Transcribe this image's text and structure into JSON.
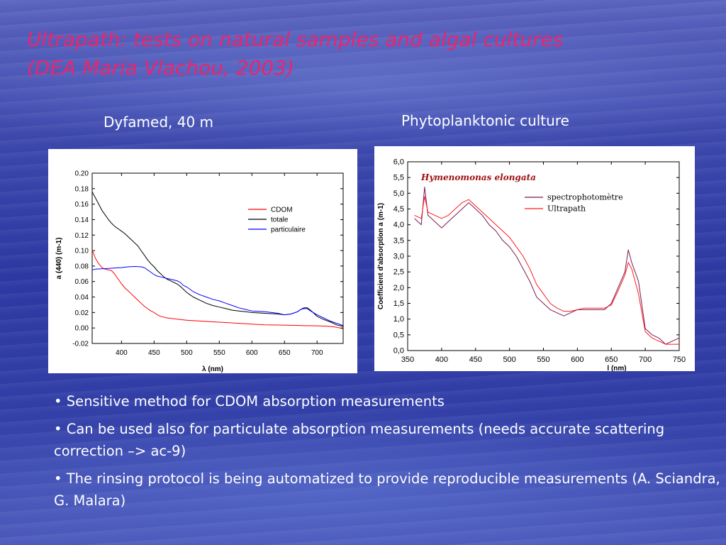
{
  "title": {
    "line1": "Ultrapath: tests on natural samples and algal cultures",
    "line2": "(DEA Maria Vlachou, 2003)"
  },
  "captions": {
    "left": "Dyfamed, 40 m",
    "right": "Phytoplanktonic culture"
  },
  "bullets": [
    "• Sensitive method for CDOM absorption measurements",
    "• Can be used also for particulate absorption measurements (needs accurate scattering correction –> ac-9)",
    "• The rinsing protocol is being automatized to provide reproducible measurements (A. Sciandra, G. Malara)"
  ],
  "chart_data": [
    {
      "type": "line",
      "xlabel": "λ (nm)",
      "ylabel": "a (440) (m-1)",
      "xlim": [
        355,
        740
      ],
      "ylim": [
        -0.02,
        0.2
      ],
      "xticks": [
        "400",
        "450",
        "500",
        "550",
        "600",
        "650",
        "700"
      ],
      "yticks": [
        "-0.02",
        "0.00",
        "0.02",
        "0.04",
        "0.06",
        "0.08",
        "0.10",
        "0.12",
        "0.14",
        "0.16",
        "0.18",
        "0.20"
      ],
      "legend_position": "top-right",
      "grid": false,
      "series": [
        {
          "name": "CDOM",
          "color": "#ff0000",
          "points": [
            [
              355,
              0.101
            ],
            [
              360,
              0.09
            ],
            [
              365,
              0.083
            ],
            [
              370,
              0.078
            ],
            [
              375,
              0.076
            ],
            [
              380,
              0.075
            ],
            [
              385,
              0.074
            ],
            [
              390,
              0.069
            ],
            [
              395,
              0.063
            ],
            [
              400,
              0.057
            ],
            [
              405,
              0.052
            ],
            [
              410,
              0.048
            ],
            [
              415,
              0.044
            ],
            [
              420,
              0.04
            ],
            [
              425,
              0.036
            ],
            [
              430,
              0.032
            ],
            [
              435,
              0.028
            ],
            [
              440,
              0.025
            ],
            [
              445,
              0.022
            ],
            [
              450,
              0.02
            ],
            [
              455,
              0.017
            ],
            [
              460,
              0.015
            ],
            [
              470,
              0.013
            ],
            [
              480,
              0.012
            ],
            [
              490,
              0.011
            ],
            [
              500,
              0.01
            ],
            [
              520,
              0.009
            ],
            [
              540,
              0.008
            ],
            [
              560,
              0.007
            ],
            [
              580,
              0.006
            ],
            [
              600,
              0.005
            ],
            [
              620,
              0.004
            ],
            [
              640,
              0.0038
            ],
            [
              660,
              0.0035
            ],
            [
              680,
              0.003
            ],
            [
              700,
              0.0028
            ],
            [
              710,
              0.0025
            ],
            [
              720,
              0.002
            ],
            [
              730,
              0.001
            ],
            [
              740,
              -0.001
            ]
          ]
        },
        {
          "name": "totale",
          "color": "#000000",
          "points": [
            [
              355,
              0.176
            ],
            [
              360,
              0.168
            ],
            [
              365,
              0.16
            ],
            [
              370,
              0.152
            ],
            [
              375,
              0.146
            ],
            [
              380,
              0.14
            ],
            [
              385,
              0.135
            ],
            [
              390,
              0.131
            ],
            [
              395,
              0.128
            ],
            [
              400,
              0.125
            ],
            [
              405,
              0.122
            ],
            [
              410,
              0.118
            ],
            [
              415,
              0.114
            ],
            [
              420,
              0.11
            ],
            [
              425,
              0.106
            ],
            [
              430,
              0.1
            ],
            [
              435,
              0.094
            ],
            [
              440,
              0.088
            ],
            [
              445,
              0.083
            ],
            [
              450,
              0.079
            ],
            [
              455,
              0.074
            ],
            [
              460,
              0.07
            ],
            [
              465,
              0.066
            ],
            [
              470,
              0.063
            ],
            [
              475,
              0.061
            ],
            [
              480,
              0.059
            ],
            [
              485,
              0.057
            ],
            [
              490,
              0.054
            ],
            [
              495,
              0.05
            ],
            [
              500,
              0.046
            ],
            [
              505,
              0.043
            ],
            [
              510,
              0.04
            ],
            [
              520,
              0.036
            ],
            [
              530,
              0.032
            ],
            [
              540,
              0.029
            ],
            [
              550,
              0.027
            ],
            [
              560,
              0.025
            ],
            [
              570,
              0.023
            ],
            [
              580,
              0.022
            ],
            [
              590,
              0.021
            ],
            [
              600,
              0.02
            ],
            [
              620,
              0.019
            ],
            [
              640,
              0.018
            ],
            [
              650,
              0.017
            ],
            [
              660,
              0.018
            ],
            [
              670,
              0.021
            ],
            [
              675,
              0.024
            ],
            [
              680,
              0.026
            ],
            [
              685,
              0.026
            ],
            [
              690,
              0.023
            ],
            [
              700,
              0.015
            ],
            [
              710,
              0.011
            ],
            [
              720,
              0.008
            ],
            [
              730,
              0.004
            ],
            [
              740,
              0.002
            ]
          ]
        },
        {
          "name": "particulaire",
          "color": "#0000ff",
          "points": [
            [
              355,
              0.075
            ],
            [
              360,
              0.076
            ],
            [
              370,
              0.0765
            ],
            [
              380,
              0.077
            ],
            [
              390,
              0.0775
            ],
            [
              400,
              0.078
            ],
            [
              410,
              0.079
            ],
            [
              420,
              0.0795
            ],
            [
              430,
              0.079
            ],
            [
              435,
              0.078
            ],
            [
              440,
              0.075
            ],
            [
              445,
              0.072
            ],
            [
              450,
              0.069
            ],
            [
              455,
              0.067
            ],
            [
              460,
              0.066
            ],
            [
              465,
              0.065
            ],
            [
              470,
              0.064
            ],
            [
              475,
              0.063
            ],
            [
              480,
              0.062
            ],
            [
              485,
              0.061
            ],
            [
              490,
              0.059
            ],
            [
              495,
              0.055
            ],
            [
              500,
              0.053
            ],
            [
              505,
              0.05
            ],
            [
              510,
              0.047
            ],
            [
              520,
              0.043
            ],
            [
              530,
              0.04
            ],
            [
              540,
              0.037
            ],
            [
              550,
              0.035
            ],
            [
              560,
              0.032
            ],
            [
              570,
              0.029
            ],
            [
              580,
              0.026
            ],
            [
              590,
              0.024
            ],
            [
              600,
              0.022
            ],
            [
              620,
              0.021
            ],
            [
              640,
              0.019
            ],
            [
              650,
              0.017
            ],
            [
              660,
              0.018
            ],
            [
              670,
              0.021
            ],
            [
              675,
              0.024
            ],
            [
              680,
              0.025
            ],
            [
              685,
              0.025
            ],
            [
              690,
              0.022
            ],
            [
              700,
              0.017
            ],
            [
              710,
              0.013
            ],
            [
              720,
              0.009
            ],
            [
              730,
              0.006
            ],
            [
              740,
              0.003
            ]
          ]
        }
      ]
    },
    {
      "type": "line",
      "annotation": "Hymenomonas elongata",
      "xlabel": "l (nm)",
      "ylabel": "Coefficient d'absorption a (m-1)",
      "xlim": [
        350,
        750
      ],
      "ylim": [
        0,
        6.0
      ],
      "xticks": [
        "350",
        "400",
        "450",
        "500",
        "550",
        "600",
        "650",
        "700",
        "750"
      ],
      "yticks": [
        "0,0",
        "0,5",
        "1,0",
        "1,5",
        "2,0",
        "2,5",
        "3,0",
        "3,5",
        "4,0",
        "4,5",
        "5,0",
        "5,5",
        "6,0"
      ],
      "legend_position": "top-right",
      "grid": false,
      "series": [
        {
          "name": "spectrophotomètre",
          "color": "#7a1a55",
          "points": [
            [
              360,
              4.2
            ],
            [
              370,
              4.0
            ],
            [
              375,
              5.2
            ],
            [
              380,
              4.3
            ],
            [
              390,
              4.1
            ],
            [
              400,
              3.9
            ],
            [
              410,
              4.1
            ],
            [
              420,
              4.3
            ],
            [
              430,
              4.5
            ],
            [
              440,
              4.7
            ],
            [
              450,
              4.5
            ],
            [
              460,
              4.3
            ],
            [
              470,
              4.0
            ],
            [
              480,
              3.8
            ],
            [
              490,
              3.5
            ],
            [
              500,
              3.3
            ],
            [
              510,
              3.0
            ],
            [
              520,
              2.6
            ],
            [
              530,
              2.2
            ],
            [
              540,
              1.7
            ],
            [
              550,
              1.5
            ],
            [
              560,
              1.3
            ],
            [
              570,
              1.2
            ],
            [
              580,
              1.1
            ],
            [
              590,
              1.2
            ],
            [
              600,
              1.3
            ],
            [
              610,
              1.3
            ],
            [
              620,
              1.3
            ],
            [
              630,
              1.3
            ],
            [
              640,
              1.3
            ],
            [
              650,
              1.5
            ],
            [
              660,
              2.0
            ],
            [
              670,
              2.5
            ],
            [
              675,
              3.2
            ],
            [
              680,
              2.8
            ],
            [
              690,
              2.2
            ],
            [
              700,
              0.7
            ],
            [
              710,
              0.5
            ],
            [
              720,
              0.4
            ],
            [
              730,
              0.2
            ],
            [
              740,
              0.3
            ],
            [
              750,
              0.4
            ]
          ]
        },
        {
          "name": "Ultrapath",
          "color": "#ff1a1a",
          "points": [
            [
              360,
              4.3
            ],
            [
              370,
              4.2
            ],
            [
              375,
              4.9
            ],
            [
              380,
              4.4
            ],
            [
              390,
              4.3
            ],
            [
              400,
              4.2
            ],
            [
              410,
              4.3
            ],
            [
              420,
              4.5
            ],
            [
              430,
              4.7
            ],
            [
              440,
              4.8
            ],
            [
              450,
              4.6
            ],
            [
              460,
              4.4
            ],
            [
              470,
              4.2
            ],
            [
              480,
              4.0
            ],
            [
              490,
              3.8
            ],
            [
              500,
              3.6
            ],
            [
              510,
              3.3
            ],
            [
              520,
              3.0
            ],
            [
              530,
              2.6
            ],
            [
              540,
              2.1
            ],
            [
              550,
              1.8
            ],
            [
              560,
              1.5
            ],
            [
              570,
              1.35
            ],
            [
              580,
              1.25
            ],
            [
              590,
              1.25
            ],
            [
              600,
              1.3
            ],
            [
              610,
              1.35
            ],
            [
              620,
              1.35
            ],
            [
              630,
              1.35
            ],
            [
              640,
              1.35
            ],
            [
              650,
              1.45
            ],
            [
              660,
              1.9
            ],
            [
              670,
              2.4
            ],
            [
              675,
              2.8
            ],
            [
              680,
              2.6
            ],
            [
              690,
              1.8
            ],
            [
              700,
              0.6
            ],
            [
              710,
              0.4
            ],
            [
              720,
              0.3
            ],
            [
              730,
              0.2
            ],
            [
              740,
              0.2
            ],
            [
              750,
              0.2
            ]
          ]
        }
      ]
    }
  ]
}
